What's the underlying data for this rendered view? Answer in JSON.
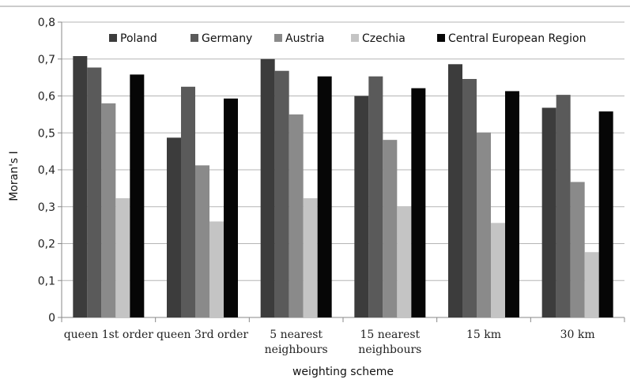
{
  "chart_data": {
    "type": "bar",
    "title": "",
    "xlabel": "weighting scheme",
    "ylabel": "Moran's I",
    "ylim": [
      0,
      0.8
    ],
    "yticks": [
      "0",
      "0,1",
      "0,2",
      "0,3",
      "0,4",
      "0,5",
      "0,6",
      "0,7",
      "0,8"
    ],
    "categories": [
      [
        "queen 1st order"
      ],
      [
        "queen 3rd order"
      ],
      [
        "5 nearest",
        "neighbours"
      ],
      [
        "15 nearest",
        "neighbours"
      ],
      [
        "15 km"
      ],
      [
        "30 km"
      ]
    ],
    "series": [
      {
        "name": "Poland",
        "color": "#3c3c3c",
        "values": [
          0.708,
          0.487,
          0.7,
          0.6,
          0.686,
          0.568
        ]
      },
      {
        "name": "Germany",
        "color": "#5a5a5a",
        "values": [
          0.677,
          0.625,
          0.668,
          0.653,
          0.646,
          0.603
        ]
      },
      {
        "name": "Austria",
        "color": "#8a8a8a",
        "values": [
          0.58,
          0.412,
          0.55,
          0.481,
          0.501,
          0.367
        ]
      },
      {
        "name": "Czechia",
        "color": "#c4c4c4",
        "values": [
          0.323,
          0.26,
          0.323,
          0.301,
          0.256,
          0.177
        ]
      },
      {
        "name": "Central European Region",
        "color": "#060606",
        "values": [
          0.658,
          0.593,
          0.653,
          0.621,
          0.613,
          0.558
        ]
      }
    ],
    "grid": true,
    "legend_position": "top"
  }
}
